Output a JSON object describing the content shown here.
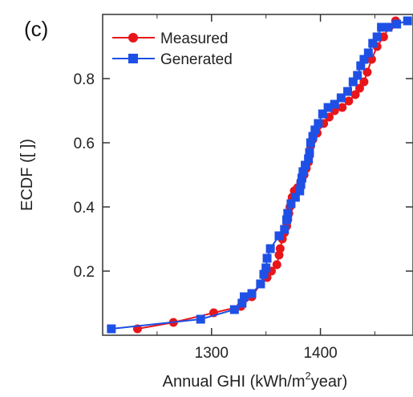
{
  "chart_data": {
    "type": "scatter",
    "panel_label": "(c)",
    "xlabel": "Annual GHI (kWh/m",
    "xlabel_sup": "2",
    "xlabel_suffix": "year)",
    "ylabel": "ECDF ([ ])",
    "xlim": [
      1200,
      1485
    ],
    "ylim": [
      0,
      1.0
    ],
    "x_ticks": [
      1300,
      1400
    ],
    "x_tick_labels": [
      "1300",
      "1400"
    ],
    "y_ticks": [
      0.2,
      0.4,
      0.6,
      0.8
    ],
    "y_tick_labels": [
      "0.2",
      "0.4",
      "0.6",
      "0.8"
    ],
    "grid": false,
    "legend_position": "top-left",
    "series": [
      {
        "name": "Measured",
        "color": "#e8161b",
        "marker": "circle",
        "points": [
          [
            1232,
            0.02
          ],
          [
            1265,
            0.04
          ],
          [
            1302,
            0.07
          ],
          [
            1327,
            0.09
          ],
          [
            1337,
            0.12
          ],
          [
            1345,
            0.16
          ],
          [
            1351,
            0.18
          ],
          [
            1355,
            0.2
          ],
          [
            1360,
            0.22
          ],
          [
            1362,
            0.25
          ],
          [
            1363,
            0.27
          ],
          [
            1365,
            0.3
          ],
          [
            1367,
            0.32
          ],
          [
            1369,
            0.34
          ],
          [
            1370,
            0.36
          ],
          [
            1371,
            0.38
          ],
          [
            1372,
            0.4
          ],
          [
            1374,
            0.43
          ],
          [
            1376,
            0.45
          ],
          [
            1379,
            0.46
          ],
          [
            1382,
            0.48
          ],
          [
            1385,
            0.5
          ],
          [
            1387,
            0.52
          ],
          [
            1389,
            0.54
          ],
          [
            1390,
            0.56
          ],
          [
            1391,
            0.59
          ],
          [
            1393,
            0.61
          ],
          [
            1397,
            0.63
          ],
          [
            1403,
            0.66
          ],
          [
            1408,
            0.68
          ],
          [
            1413,
            0.7
          ],
          [
            1420,
            0.71
          ],
          [
            1426,
            0.73
          ],
          [
            1432,
            0.75
          ],
          [
            1436,
            0.77
          ],
          [
            1440,
            0.79
          ],
          [
            1443,
            0.82
          ],
          [
            1447,
            0.86
          ],
          [
            1452,
            0.9
          ],
          [
            1458,
            0.93
          ],
          [
            1463,
            0.96
          ],
          [
            1469,
            0.98
          ]
        ]
      },
      {
        "name": "Generated",
        "color": "#1e50e6",
        "marker": "square",
        "points": [
          [
            1208,
            0.02
          ],
          [
            1290,
            0.05
          ],
          [
            1321,
            0.08
          ],
          [
            1328,
            0.1
          ],
          [
            1330,
            0.12
          ],
          [
            1337,
            0.13
          ],
          [
            1345,
            0.16
          ],
          [
            1348,
            0.19
          ],
          [
            1350,
            0.21
          ],
          [
            1351,
            0.24
          ],
          [
            1354,
            0.27
          ],
          [
            1362,
            0.31
          ],
          [
            1367,
            0.33
          ],
          [
            1369,
            0.36
          ],
          [
            1370,
            0.38
          ],
          [
            1373,
            0.41
          ],
          [
            1377,
            0.43
          ],
          [
            1381,
            0.45
          ],
          [
            1382,
            0.47
          ],
          [
            1383,
            0.49
          ],
          [
            1384,
            0.51
          ],
          [
            1386,
            0.53
          ],
          [
            1389,
            0.55
          ],
          [
            1390,
            0.57
          ],
          [
            1391,
            0.6
          ],
          [
            1393,
            0.62
          ],
          [
            1395,
            0.64
          ],
          [
            1398,
            0.66
          ],
          [
            1402,
            0.69
          ],
          [
            1407,
            0.71
          ],
          [
            1413,
            0.72
          ],
          [
            1419,
            0.74
          ],
          [
            1425,
            0.76
          ],
          [
            1430,
            0.79
          ],
          [
            1434,
            0.81
          ],
          [
            1437,
            0.84
          ],
          [
            1440,
            0.86
          ],
          [
            1444,
            0.88
          ],
          [
            1448,
            0.91
          ],
          [
            1452,
            0.93
          ],
          [
            1456,
            0.96
          ],
          [
            1462,
            0.96
          ],
          [
            1470,
            0.97
          ],
          [
            1480,
            0.98
          ]
        ]
      }
    ]
  }
}
